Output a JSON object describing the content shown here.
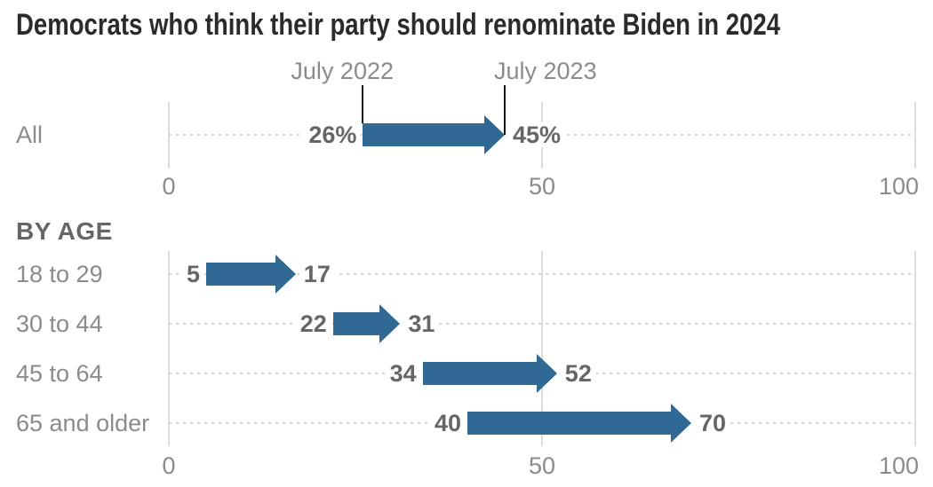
{
  "title": "Democrats who think their party should renominate Biden in 2024",
  "section_header": "BY AGE",
  "colors": {
    "arrow": "#306a94",
    "grid": "#dcdcdc",
    "dotted": "#d6d6d6",
    "tick_line": "#151515",
    "title_text": "#2b2b2b",
    "label_gray": "#8b8b8b",
    "value_gray": "#666666"
  },
  "chart_data": {
    "type": "arrow",
    "title": "Democrats who think their party should renominate Biden in 2024",
    "series_labels": [
      "July 2022",
      "July 2023"
    ],
    "unit": "percent",
    "axis_range": [
      0,
      100
    ],
    "axis_ticks": [
      "0",
      "50",
      "100"
    ],
    "grid": true,
    "overall": {
      "label": "All",
      "from": 26,
      "to": 45,
      "from_label": "26%",
      "to_label": "45%"
    },
    "by_age": {
      "header": "BY AGE",
      "groups": [
        {
          "label": "18 to 29",
          "from": 5,
          "to": 17
        },
        {
          "label": "30 to 44",
          "from": 22,
          "to": 31
        },
        {
          "label": "45 to 64",
          "from": 34,
          "to": 52
        },
        {
          "label": "65 and older",
          "from": 40,
          "to": 70
        }
      ]
    }
  }
}
